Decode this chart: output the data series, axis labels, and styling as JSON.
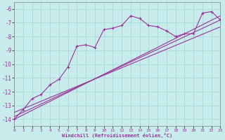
{
  "xlabel": "Windchill (Refroidissement éolien,°C)",
  "ylabel": "",
  "bg_color": "#c8ecec",
  "grid_color": "#a8d8d8",
  "line_color": "#993399",
  "xlim": [
    0,
    23
  ],
  "ylim": [
    -14.5,
    -5.5
  ],
  "xticks": [
    0,
    1,
    2,
    3,
    4,
    5,
    6,
    7,
    8,
    9,
    10,
    11,
    12,
    13,
    14,
    15,
    16,
    17,
    18,
    19,
    20,
    21,
    22,
    23
  ],
  "yticks": [
    -14,
    -13,
    -12,
    -11,
    -10,
    -9,
    -8,
    -7,
    -6
  ],
  "series1_x": [
    0,
    1,
    2,
    3,
    4,
    5,
    6,
    7,
    8,
    9,
    10,
    11,
    12,
    13,
    14,
    15,
    16,
    17,
    18,
    19,
    20,
    21,
    22,
    23
  ],
  "series1_y": [
    -14.0,
    -13.3,
    -12.5,
    -12.2,
    -11.5,
    -11.1,
    -10.2,
    -8.7,
    -8.6,
    -8.8,
    -7.5,
    -7.4,
    -7.2,
    -6.5,
    -6.7,
    -7.2,
    -7.3,
    -7.6,
    -8.0,
    -7.8,
    -7.8,
    -6.3,
    -6.2,
    -6.8
  ],
  "series2_x": [
    0,
    23
  ],
  "series2_y": [
    -14.0,
    -6.5
  ],
  "series3_x": [
    0,
    23
  ],
  "series3_y": [
    -13.8,
    -6.8
  ],
  "series4_x": [
    0,
    23
  ],
  "series4_y": [
    -13.5,
    -7.3
  ],
  "label_color": "#993399"
}
